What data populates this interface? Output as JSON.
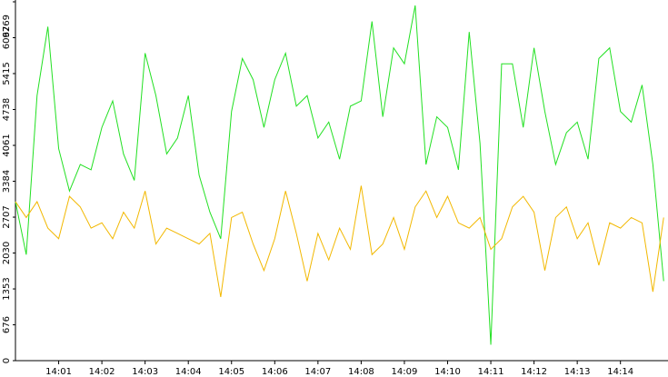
{
  "chart_data": {
    "type": "line",
    "x": [
      0,
      0.25,
      0.5,
      0.75,
      1,
      1.25,
      1.5,
      1.75,
      2,
      2.25,
      2.5,
      2.75,
      3,
      3.25,
      3.5,
      3.75,
      4,
      4.25,
      4.5,
      4.75,
      5,
      5.25,
      5.5,
      5.75,
      6,
      6.25,
      6.5,
      6.75,
      7,
      7.25,
      7.5,
      7.75,
      8,
      8.25,
      8.5,
      8.75,
      9,
      9.25,
      9.5,
      9.75,
      10,
      10.25,
      10.5,
      10.75,
      11,
      11.25,
      11.5,
      11.75,
      12,
      12.25,
      12.5,
      12.75,
      13,
      13.25,
      13.5,
      13.75,
      14,
      14.25,
      14.5,
      14.75,
      15
    ],
    "series": [
      {
        "name": "green",
        "color": "#22e022",
        "values": [
          3000,
          2000,
          5000,
          6300,
          4000,
          3200,
          3700,
          3600,
          4400,
          4900,
          3900,
          3400,
          5800,
          5000,
          3900,
          4200,
          5000,
          3500,
          2800,
          2300,
          4700,
          5700,
          5300,
          4400,
          5300,
          5800,
          4800,
          5000,
          4200,
          4500,
          3800,
          4800,
          4900,
          6400,
          4600,
          5900,
          5600,
          6700,
          3700,
          4600,
          4400,
          3600,
          6200,
          4100,
          300,
          5600,
          5600,
          4400,
          5900,
          4700,
          3700,
          4300,
          4500,
          3800,
          5700,
          5900,
          4700,
          4500,
          5200,
          3700,
          1500
        ]
      },
      {
        "name": "orange",
        "color": "#f2b800",
        "values": [
          3000,
          2700,
          3000,
          2500,
          2300,
          3100,
          2900,
          2500,
          2600,
          2300,
          2800,
          2500,
          3200,
          2200,
          2500,
          2400,
          2300,
          2200,
          2400,
          1200,
          2700,
          2800,
          2200,
          1700,
          2300,
          3200,
          2400,
          1500,
          2400,
          1900,
          2500,
          2100,
          3300,
          2000,
          2200,
          2700,
          2100,
          2900,
          3200,
          2700,
          3100,
          2600,
          2500,
          2700,
          2100,
          2300,
          2900,
          3100,
          2800,
          1700,
          2700,
          2900,
          2300,
          2600,
          1800,
          2600,
          2500,
          2700,
          2600,
          1300,
          2700
        ]
      }
    ],
    "xlim": [
      0,
      15.1
    ],
    "xticks": [
      {
        "value": 1,
        "label": "14:01"
      },
      {
        "value": 2,
        "label": "14:02"
      },
      {
        "value": 3,
        "label": "14:03"
      },
      {
        "value": 4,
        "label": "14:04"
      },
      {
        "value": 5,
        "label": "14:05"
      },
      {
        "value": 6,
        "label": "14:06"
      },
      {
        "value": 7,
        "label": "14:07"
      },
      {
        "value": 8,
        "label": "14:08"
      },
      {
        "value": 9,
        "label": "14:09"
      },
      {
        "value": 10,
        "label": "14:10"
      },
      {
        "value": 11,
        "label": "14:11"
      },
      {
        "value": 12,
        "label": "14:12"
      },
      {
        "value": 13,
        "label": "14:13"
      },
      {
        "value": 14,
        "label": "14:14"
      }
    ],
    "ylim": [
      0,
      6769
    ],
    "yticks": [
      0,
      676,
      1353,
      2030,
      2707,
      3384,
      4061,
      4738,
      5415,
      6092,
      6769
    ]
  }
}
